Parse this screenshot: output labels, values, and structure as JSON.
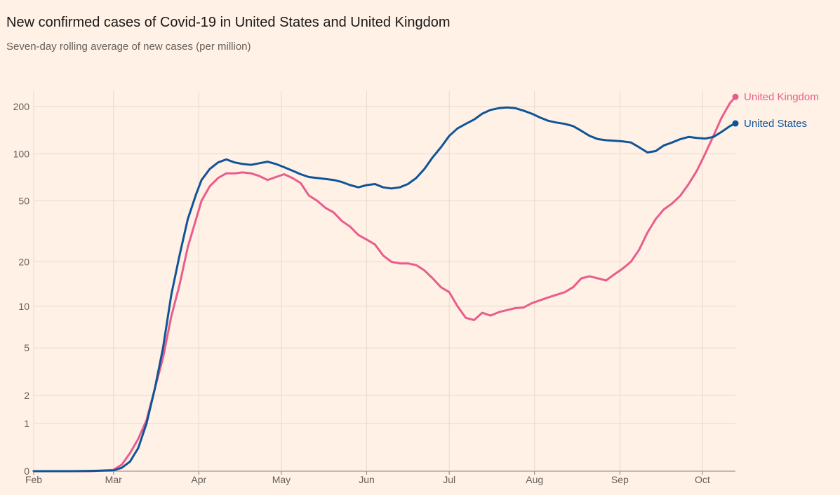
{
  "header": {
    "title": "New confirmed cases of Covid-19 in United States and United Kingdom",
    "subtitle": "Seven-day rolling average of new cases (per million)"
  },
  "chart_data": {
    "type": "line",
    "title": "New confirmed cases of Covid-19 in United States and United Kingdom",
    "subtitle": "Seven-day rolling average of new cases (per million)",
    "xlabel": "",
    "ylabel": "",
    "y_scale": "log",
    "x_ticks": [
      "Feb",
      "Mar",
      "Apr",
      "May",
      "Jun",
      "Jul",
      "Aug",
      "Sep",
      "Oct"
    ],
    "x_range": [
      "2020-02-01",
      "2020-10-13"
    ],
    "y_ticks": [
      0,
      1,
      2,
      5,
      10,
      20,
      50,
      100,
      200
    ],
    "grid": true,
    "legend": "end-of-line labels",
    "series": [
      {
        "name": "United Kingdom",
        "color": "#e95d8c",
        "points": [
          [
            "2020-02-01",
            0
          ],
          [
            "2020-02-08",
            0
          ],
          [
            "2020-02-15",
            0
          ],
          [
            "2020-02-22",
            0
          ],
          [
            "2020-03-01",
            0.02
          ],
          [
            "2020-03-04",
            0.1
          ],
          [
            "2020-03-07",
            0.3
          ],
          [
            "2020-03-10",
            0.6
          ],
          [
            "2020-03-13",
            1.1
          ],
          [
            "2020-03-16",
            2.3
          ],
          [
            "2020-03-19",
            4.2
          ],
          [
            "2020-03-22",
            8.5
          ],
          [
            "2020-03-25",
            14
          ],
          [
            "2020-03-28",
            25
          ],
          [
            "2020-03-31",
            38
          ],
          [
            "2020-04-02",
            50
          ],
          [
            "2020-04-05",
            62
          ],
          [
            "2020-04-08",
            70
          ],
          [
            "2020-04-11",
            75
          ],
          [
            "2020-04-14",
            75
          ],
          [
            "2020-04-17",
            76
          ],
          [
            "2020-04-20",
            75
          ],
          [
            "2020-04-23",
            72
          ],
          [
            "2020-04-26",
            68
          ],
          [
            "2020-04-29",
            71
          ],
          [
            "2020-05-02",
            74
          ],
          [
            "2020-05-05",
            70
          ],
          [
            "2020-05-08",
            65
          ],
          [
            "2020-05-11",
            54
          ],
          [
            "2020-05-14",
            50
          ],
          [
            "2020-05-17",
            45
          ],
          [
            "2020-05-20",
            42
          ],
          [
            "2020-05-23",
            37
          ],
          [
            "2020-05-26",
            34
          ],
          [
            "2020-05-29",
            30
          ],
          [
            "2020-06-01",
            28
          ],
          [
            "2020-06-04",
            26
          ],
          [
            "2020-06-07",
            22
          ],
          [
            "2020-06-10",
            20
          ],
          [
            "2020-06-13",
            19.5
          ],
          [
            "2020-06-16",
            19.5
          ],
          [
            "2020-06-19",
            19
          ],
          [
            "2020-06-22",
            17.5
          ],
          [
            "2020-06-25",
            15.5
          ],
          [
            "2020-06-28",
            13.5
          ],
          [
            "2020-07-01",
            12.5
          ],
          [
            "2020-07-04",
            10
          ],
          [
            "2020-07-07",
            8.3
          ],
          [
            "2020-07-10",
            8
          ],
          [
            "2020-07-13",
            9
          ],
          [
            "2020-07-16",
            8.6
          ],
          [
            "2020-07-19",
            9.1
          ],
          [
            "2020-07-22",
            9.4
          ],
          [
            "2020-07-25",
            9.7
          ],
          [
            "2020-07-28",
            9.8
          ],
          [
            "2020-07-31",
            10.5
          ],
          [
            "2020-08-03",
            11
          ],
          [
            "2020-08-06",
            11.5
          ],
          [
            "2020-08-09",
            12
          ],
          [
            "2020-08-12",
            12.5
          ],
          [
            "2020-08-15",
            13.5
          ],
          [
            "2020-08-18",
            15.5
          ],
          [
            "2020-08-21",
            16
          ],
          [
            "2020-08-24",
            15.5
          ],
          [
            "2020-08-27",
            15
          ],
          [
            "2020-08-30",
            16.5
          ],
          [
            "2020-09-02",
            18
          ],
          [
            "2020-09-05",
            20
          ],
          [
            "2020-09-08",
            24
          ],
          [
            "2020-09-11",
            31
          ],
          [
            "2020-09-14",
            38
          ],
          [
            "2020-09-17",
            44
          ],
          [
            "2020-09-20",
            48
          ],
          [
            "2020-09-23",
            54
          ],
          [
            "2020-09-26",
            64
          ],
          [
            "2020-09-29",
            78
          ],
          [
            "2020-10-02",
            100
          ],
          [
            "2020-10-05",
            130
          ],
          [
            "2020-10-08",
            170
          ],
          [
            "2020-10-11",
            210
          ],
          [
            "2020-10-13",
            230
          ]
        ]
      },
      {
        "name": "United States",
        "color": "#0f5499",
        "points": [
          [
            "2020-02-01",
            0
          ],
          [
            "2020-02-15",
            0
          ],
          [
            "2020-03-01",
            0.01
          ],
          [
            "2020-03-04",
            0.05
          ],
          [
            "2020-03-07",
            0.15
          ],
          [
            "2020-03-10",
            0.4
          ],
          [
            "2020-03-13",
            1.0
          ],
          [
            "2020-03-16",
            2.3
          ],
          [
            "2020-03-19",
            5
          ],
          [
            "2020-03-22",
            12
          ],
          [
            "2020-03-25",
            22
          ],
          [
            "2020-03-28",
            38
          ],
          [
            "2020-03-31",
            55
          ],
          [
            "2020-04-02",
            68
          ],
          [
            "2020-04-05",
            80
          ],
          [
            "2020-04-08",
            88
          ],
          [
            "2020-04-11",
            92
          ],
          [
            "2020-04-14",
            88
          ],
          [
            "2020-04-17",
            86
          ],
          [
            "2020-04-20",
            85
          ],
          [
            "2020-04-23",
            87
          ],
          [
            "2020-04-26",
            89
          ],
          [
            "2020-04-29",
            86
          ],
          [
            "2020-05-02",
            82
          ],
          [
            "2020-05-05",
            78
          ],
          [
            "2020-05-08",
            74
          ],
          [
            "2020-05-11",
            71
          ],
          [
            "2020-05-14",
            70
          ],
          [
            "2020-05-17",
            69
          ],
          [
            "2020-05-20",
            68
          ],
          [
            "2020-05-23",
            66
          ],
          [
            "2020-05-26",
            63
          ],
          [
            "2020-05-29",
            61
          ],
          [
            "2020-06-01",
            63
          ],
          [
            "2020-06-04",
            64
          ],
          [
            "2020-06-07",
            61
          ],
          [
            "2020-06-10",
            60
          ],
          [
            "2020-06-13",
            61
          ],
          [
            "2020-06-16",
            64
          ],
          [
            "2020-06-19",
            70
          ],
          [
            "2020-06-22",
            80
          ],
          [
            "2020-06-25",
            95
          ],
          [
            "2020-06-28",
            110
          ],
          [
            "2020-07-01",
            130
          ],
          [
            "2020-07-04",
            145
          ],
          [
            "2020-07-07",
            155
          ],
          [
            "2020-07-10",
            165
          ],
          [
            "2020-07-13",
            180
          ],
          [
            "2020-07-16",
            190
          ],
          [
            "2020-07-19",
            195
          ],
          [
            "2020-07-22",
            197
          ],
          [
            "2020-07-25",
            195
          ],
          [
            "2020-07-28",
            188
          ],
          [
            "2020-07-31",
            180
          ],
          [
            "2020-08-03",
            170
          ],
          [
            "2020-08-06",
            162
          ],
          [
            "2020-08-09",
            158
          ],
          [
            "2020-08-12",
            155
          ],
          [
            "2020-08-15",
            150
          ],
          [
            "2020-08-18",
            140
          ],
          [
            "2020-08-21",
            130
          ],
          [
            "2020-08-24",
            124
          ],
          [
            "2020-08-27",
            122
          ],
          [
            "2020-08-30",
            121
          ],
          [
            "2020-09-02",
            120
          ],
          [
            "2020-09-05",
            118
          ],
          [
            "2020-09-08",
            110
          ],
          [
            "2020-09-11",
            102
          ],
          [
            "2020-09-14",
            104
          ],
          [
            "2020-09-17",
            113
          ],
          [
            "2020-09-20",
            118
          ],
          [
            "2020-09-23",
            124
          ],
          [
            "2020-09-26",
            128
          ],
          [
            "2020-09-29",
            126
          ],
          [
            "2020-10-02",
            125
          ],
          [
            "2020-10-05",
            128
          ],
          [
            "2020-10-08",
            138
          ],
          [
            "2020-10-11",
            150
          ],
          [
            "2020-10-13",
            156
          ]
        ]
      }
    ]
  }
}
